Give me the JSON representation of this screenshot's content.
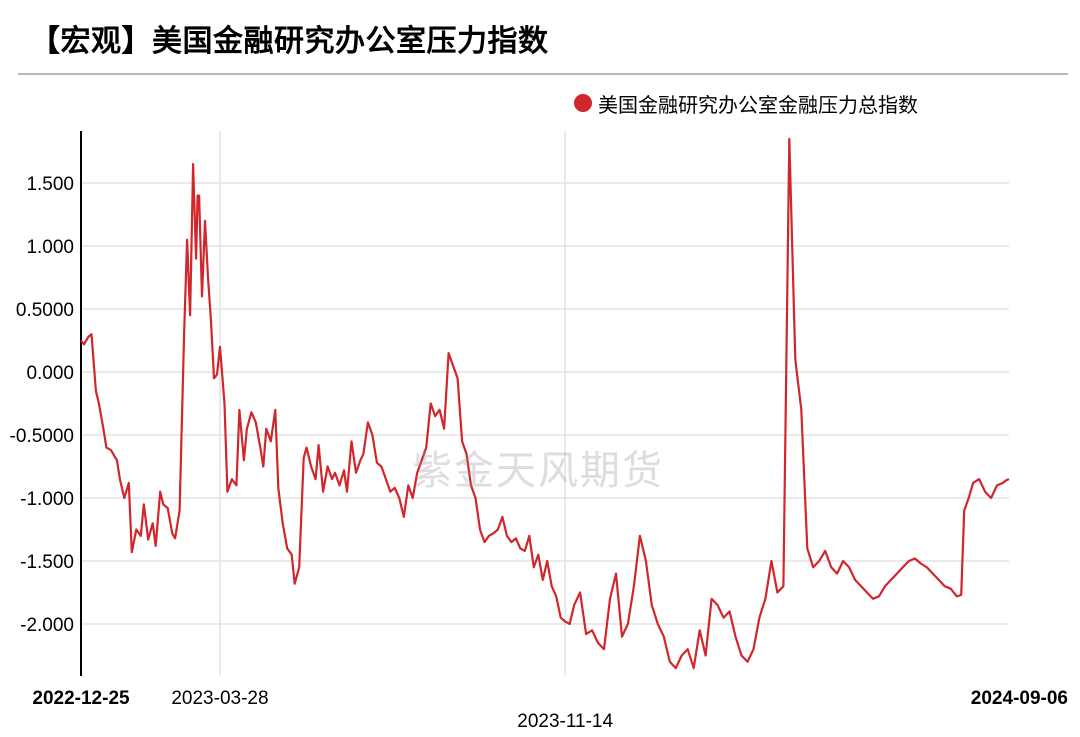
{
  "title": "【宏观】美国金融研究办公室压力指数",
  "watermark": "紫金天风期货",
  "legend": {
    "label": "美国金融研究办公室金融压力总指数",
    "color": "#d1262b"
  },
  "chart_data": {
    "type": "line",
    "title": "【宏观】美国金融研究办公室压力指数",
    "xlabel": "",
    "ylabel": "",
    "ylim": [
      -2.4,
      1.9
    ],
    "y_ticks": [
      {
        "value": 1.5,
        "label": "1.500"
      },
      {
        "value": 1.0,
        "label": "1.000"
      },
      {
        "value": 0.5,
        "label": "0.5000"
      },
      {
        "value": 0.0,
        "label": "0.000"
      },
      {
        "value": -0.5,
        "label": "-0.5000"
      },
      {
        "value": -1.0,
        "label": "-1.000"
      },
      {
        "value": -1.5,
        "label": "-1.500"
      },
      {
        "value": -2.0,
        "label": "-2.000"
      }
    ],
    "x_ticks": [
      {
        "date": "2022-12-25",
        "label": "2022-12-25",
        "bold": true,
        "row": 0
      },
      {
        "date": "2023-03-28",
        "label": "2023-03-28",
        "bold": false,
        "row": 0,
        "gridline": true
      },
      {
        "date": "2023-11-14",
        "label": "2023-11-14",
        "bold": false,
        "row": 1,
        "gridline": true
      },
      {
        "date": "2024-09-06",
        "label": "2024-09-06",
        "bold": true,
        "row": 0
      }
    ],
    "x_range": [
      "2022-12-25",
      "2024-09-06"
    ],
    "grid": true,
    "legend_position": "top-right",
    "series": [
      {
        "name": "美国金融研究办公室金融压力总指数",
        "color": "#d1262b",
        "x": [
          "2022-12-25",
          "2022-12-27",
          "2022-12-30",
          "2023-01-01",
          "2023-01-04",
          "2023-01-06",
          "2023-01-09",
          "2023-01-11",
          "2023-01-14",
          "2023-01-18",
          "2023-01-20",
          "2023-01-23",
          "2023-01-26",
          "2023-01-28",
          "2023-01-31",
          "2023-02-03",
          "2023-02-05",
          "2023-02-08",
          "2023-02-11",
          "2023-02-13",
          "2023-02-16",
          "2023-02-18",
          "2023-02-21",
          "2023-02-24",
          "2023-02-26",
          "2023-03-01",
          "2023-03-04",
          "2023-03-06",
          "2023-03-08",
          "2023-03-10",
          "2023-03-12",
          "2023-03-13",
          "2023-03-14",
          "2023-03-16",
          "2023-03-18",
          "2023-03-20",
          "2023-03-22",
          "2023-03-24",
          "2023-03-26",
          "2023-03-28",
          "2023-03-31",
          "2023-04-02",
          "2023-04-05",
          "2023-04-08",
          "2023-04-10",
          "2023-04-13",
          "2023-04-15",
          "2023-04-18",
          "2023-04-21",
          "2023-04-24",
          "2023-04-26",
          "2023-04-28",
          "2023-05-01",
          "2023-05-04",
          "2023-05-06",
          "2023-05-09",
          "2023-05-12",
          "2023-05-15",
          "2023-05-17",
          "2023-05-20",
          "2023-05-23",
          "2023-05-25",
          "2023-05-28",
          "2023-05-31",
          "2023-06-02",
          "2023-06-05",
          "2023-06-08",
          "2023-06-11",
          "2023-06-13",
          "2023-06-16",
          "2023-06-19",
          "2023-06-21",
          "2023-06-24",
          "2023-06-27",
          "2023-06-30",
          "2023-07-02",
          "2023-07-05",
          "2023-07-08",
          "2023-07-11",
          "2023-07-14",
          "2023-07-17",
          "2023-07-20",
          "2023-07-23",
          "2023-07-26",
          "2023-07-29",
          "2023-08-01",
          "2023-08-04",
          "2023-08-07",
          "2023-08-10",
          "2023-08-13",
          "2023-08-16",
          "2023-08-19",
          "2023-08-22",
          "2023-08-25",
          "2023-08-28",
          "2023-08-31",
          "2023-09-03",
          "2023-09-06",
          "2023-09-09",
          "2023-09-12",
          "2023-09-15",
          "2023-09-18",
          "2023-09-21",
          "2023-09-24",
          "2023-09-27",
          "2023-09-30",
          "2023-10-03",
          "2023-10-06",
          "2023-10-09",
          "2023-10-12",
          "2023-10-15",
          "2023-10-18",
          "2023-10-21",
          "2023-10-24",
          "2023-10-27",
          "2023-10-30",
          "2023-11-02",
          "2023-11-05",
          "2023-11-08",
          "2023-11-11",
          "2023-11-14",
          "2023-11-17",
          "2023-11-20",
          "2023-11-24",
          "2023-11-28",
          "2023-12-02",
          "2023-12-06",
          "2023-12-10",
          "2023-12-14",
          "2023-12-18",
          "2023-12-22",
          "2023-12-26",
          "2023-12-30",
          "2024-01-03",
          "2024-01-07",
          "2024-01-11",
          "2024-01-15",
          "2024-01-19",
          "2024-01-23",
          "2024-01-27",
          "2024-01-31",
          "2024-02-04",
          "2024-02-08",
          "2024-02-12",
          "2024-02-16",
          "2024-02-20",
          "2024-02-24",
          "2024-02-28",
          "2024-03-03",
          "2024-03-07",
          "2024-03-11",
          "2024-03-15",
          "2024-03-19",
          "2024-03-23",
          "2024-03-27",
          "2024-03-31",
          "2024-04-04",
          "2024-04-08",
          "2024-04-12",
          "2024-04-16",
          "2024-04-20",
          "2024-04-24",
          "2024-04-28",
          "2024-05-02",
          "2024-05-06",
          "2024-05-10",
          "2024-05-14",
          "2024-05-18",
          "2024-05-22",
          "2024-05-26",
          "2024-05-30",
          "2024-06-03",
          "2024-06-07",
          "2024-06-11",
          "2024-06-15",
          "2024-06-19",
          "2024-06-23",
          "2024-06-27",
          "2024-07-01",
          "2024-07-05",
          "2024-07-09",
          "2024-07-13",
          "2024-07-17",
          "2024-07-21",
          "2024-07-25",
          "2024-07-29",
          "2024-08-02",
          "2024-08-05",
          "2024-08-07",
          "2024-08-10",
          "2024-08-13",
          "2024-08-17",
          "2024-08-21",
          "2024-08-25",
          "2024-08-29",
          "2024-09-02",
          "2024-09-04",
          "2024-09-06"
        ],
        "values": [
          0.25,
          0.22,
          0.28,
          0.3,
          -0.15,
          -0.25,
          -0.45,
          -0.6,
          -0.62,
          -0.7,
          -0.85,
          -1.0,
          -0.88,
          -1.43,
          -1.25,
          -1.3,
          -1.05,
          -1.33,
          -1.2,
          -1.38,
          -0.95,
          -1.05,
          -1.08,
          -1.28,
          -1.32,
          -1.1,
          0.3,
          1.05,
          0.45,
          1.65,
          0.9,
          1.4,
          1.4,
          0.6,
          1.2,
          0.75,
          0.4,
          -0.05,
          -0.02,
          0.2,
          -0.25,
          -0.95,
          -0.85,
          -0.9,
          -0.3,
          -0.7,
          -0.45,
          -0.32,
          -0.4,
          -0.6,
          -0.75,
          -0.45,
          -0.55,
          -0.3,
          -0.92,
          -1.2,
          -1.4,
          -1.45,
          -1.68,
          -1.55,
          -0.68,
          -0.6,
          -0.75,
          -0.85,
          -0.58,
          -0.95,
          -0.75,
          -0.85,
          -0.8,
          -0.9,
          -0.78,
          -0.95,
          -0.55,
          -0.8,
          -0.7,
          -0.65,
          -0.4,
          -0.5,
          -0.72,
          -0.75,
          -0.85,
          -0.95,
          -0.92,
          -1.0,
          -1.15,
          -0.9,
          -1.0,
          -0.8,
          -0.7,
          -0.6,
          -0.25,
          -0.35,
          -0.3,
          -0.45,
          0.15,
          0.05,
          -0.05,
          -0.55,
          -0.65,
          -0.9,
          -1.0,
          -1.25,
          -1.35,
          -1.3,
          -1.28,
          -1.25,
          -1.15,
          -1.3,
          -1.35,
          -1.32,
          -1.4,
          -1.42,
          -1.3,
          -1.55,
          -1.45,
          -1.65,
          -1.5,
          -1.7,
          -1.78,
          -1.95,
          -1.98,
          -2.0,
          -1.85,
          -1.75,
          -2.08,
          -2.05,
          -2.15,
          -2.2,
          -1.8,
          -1.6,
          -2.1,
          -2.0,
          -1.7,
          -1.3,
          -1.5,
          -1.85,
          -2.0,
          -2.1,
          -2.3,
          -2.35,
          -2.25,
          -2.2,
          -2.35,
          -2.05,
          -2.25,
          -1.8,
          -1.85,
          -1.95,
          -1.9,
          -2.1,
          -2.25,
          -2.3,
          -2.2,
          -1.95,
          -1.8,
          -1.5,
          -1.75,
          -1.7,
          1.85,
          0.1,
          -0.3,
          -1.4,
          -1.55,
          -1.5,
          -1.42,
          -1.55,
          -1.6,
          -1.5,
          -1.55,
          -1.65,
          -1.7,
          -1.75,
          -1.8,
          -1.78,
          -1.7,
          -1.65,
          -1.6,
          -1.55,
          -1.5,
          -1.48,
          -1.52,
          -1.55,
          -1.6,
          -1.65,
          -1.7,
          -1.72,
          -1.78,
          -1.77,
          -1.1,
          -1.0,
          -0.88,
          -0.85,
          -0.95,
          -1.0,
          -0.9,
          -0.88,
          -0.86,
          -0.85
        ]
      }
    ]
  }
}
